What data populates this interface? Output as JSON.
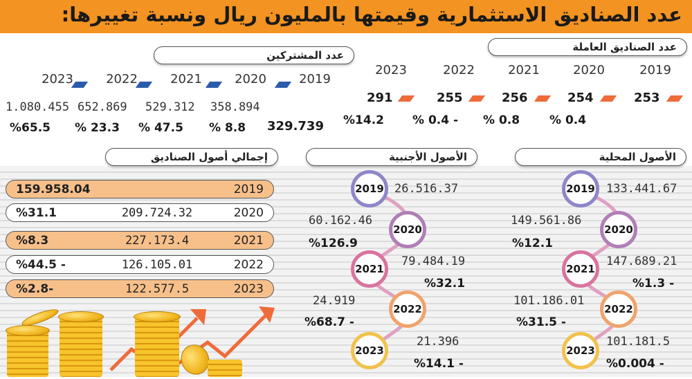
{
  "title": "عدد الصناديق الاستثمارية وقيمتها بالمليون ريال ونسبة تغييرها:",
  "subscribers": {
    "label": "عدد المشتركين",
    "years": [
      "2023",
      "2022",
      "2021",
      "2020",
      "2019"
    ],
    "values": [
      "1.080.455",
      "652.869",
      "529.312",
      "358.894",
      "329.739"
    ],
    "changes": [
      "%65.5",
      "% 23.3",
      "% 47.5",
      "% 8.8"
    ]
  },
  "funds": {
    "label": "عدد الصناديق العاملة",
    "years": [
      "2023",
      "2022",
      "2021",
      "2020",
      "2019"
    ],
    "values": [
      "291",
      "255",
      "256",
      "254",
      "253"
    ],
    "changes": [
      "%14.2",
      "% 0.4 -",
      "% 0.8",
      "% 0.4"
    ]
  },
  "total_assets": {
    "label": "إجمالي أصول الصناديق",
    "rows": [
      {
        "year": "2019",
        "value": "159.958.04",
        "change": ""
      },
      {
        "year": "2020",
        "value": "209.724.32",
        "change": "%31.1"
      },
      {
        "year": "2021",
        "value": "227.173.4",
        "change": "%8.3"
      },
      {
        "year": "2022",
        "value": "126.105.01",
        "change": "%44.5 -"
      },
      {
        "year": "2023",
        "value": "122.577.5",
        "change": "%2.8-"
      }
    ]
  },
  "foreign_assets": {
    "label": "الأصول الأجنبية",
    "rows": [
      {
        "year": "2019",
        "value": "26.516.37",
        "change": ""
      },
      {
        "year": "2020",
        "value": "60.162.46",
        "change": "%126.9"
      },
      {
        "year": "2021",
        "value": "79.484.19",
        "change": "%32.1"
      },
      {
        "year": "2022",
        "value": "24.919",
        "change": "%68.7 -"
      },
      {
        "year": "2023",
        "value": "21.396",
        "change": "%14.1 -"
      }
    ]
  },
  "local_assets": {
    "label": "الأصول المحلية",
    "rows": [
      {
        "year": "2019",
        "value": "133.441.67",
        "change": ""
      },
      {
        "year": "2020",
        "value": "149.561.86",
        "change": "%12.1"
      },
      {
        "year": "2021",
        "value": "147.689.21",
        "change": "%1.3 -"
      },
      {
        "year": "2022",
        "value": "101.186.01",
        "change": "%31.5 -"
      },
      {
        "year": "2023",
        "value": "101.181.5",
        "change": "%0.004 -"
      }
    ]
  },
  "colors": {
    "header": "#f39321",
    "blue_marker": "#2b5cab",
    "orange_marker": "#ee6b3a",
    "highlight_row": "#f7c08b",
    "arrow": "#ee6b3a"
  }
}
